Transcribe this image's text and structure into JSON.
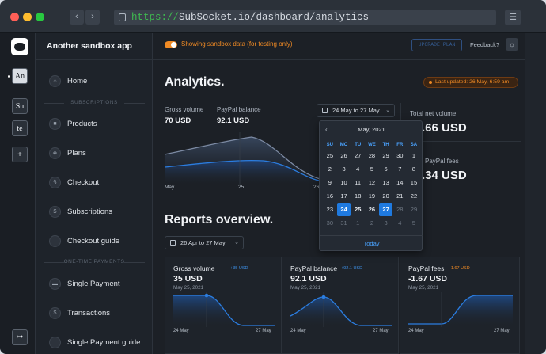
{
  "browser": {
    "url_scheme": "https://",
    "url_rest": "SubSocket.io/dashboard/analytics"
  },
  "rail": {
    "items": [
      {
        "label": "An"
      },
      {
        "label": "Su"
      },
      {
        "label": "te"
      },
      {
        "label": "+"
      }
    ]
  },
  "sidebar": {
    "brand": "Another sandbox app",
    "home": "Home",
    "section_subscriptions": "SUBSCRIPTIONS",
    "products": "Products",
    "plans": "Plans",
    "checkout": "Checkout",
    "subscriptions": "Subscriptions",
    "checkout_guide": "Checkout guide",
    "section_one_time": "ONE-TIME PAYMENTS",
    "single_payment": "Single Payment",
    "transactions": "Transactions",
    "single_payment_guide": "Single Payment guide"
  },
  "topbar": {
    "sandbox_text": "Showing sandbox data (for testing only)",
    "upgrade": "UPGRADE PLAN",
    "feedback": "Feedback?"
  },
  "analytics": {
    "title": "Analytics.",
    "last_updated": "Last updated: 26 May, 6:59 am",
    "gross_label": "Gross volume",
    "gross_value": "70 USD",
    "paypal_label": "PayPal balance",
    "paypal_value": "92.1 USD",
    "date_range": "24 May to 27 May",
    "total_net_label": "Total net volume",
    "total_net_value": ".66 USD",
    "paypal_fees_label": "PayPal fees",
    "paypal_fees_value": ".34 USD",
    "x_ticks": [
      "May",
      "25",
      "26"
    ]
  },
  "calendar": {
    "month": "May, 2021",
    "prev": "‹",
    "weekdays": [
      "SU",
      "MO",
      "TU",
      "WE",
      "TH",
      "FR",
      "SA"
    ],
    "weeks": [
      [
        "25",
        "26",
        "27",
        "28",
        "29",
        "30",
        "1"
      ],
      [
        "2",
        "3",
        "4",
        "5",
        "6",
        "7",
        "8"
      ],
      [
        "9",
        "10",
        "11",
        "12",
        "13",
        "14",
        "15"
      ],
      [
        "16",
        "17",
        "18",
        "19",
        "20",
        "21",
        "22"
      ],
      [
        "23",
        "24",
        "25",
        "26",
        "27",
        "28",
        "29"
      ],
      [
        "30",
        "31",
        "1",
        "2",
        "3",
        "4",
        "5"
      ]
    ],
    "today": "Today"
  },
  "reports": {
    "title": "Reports overview.",
    "date_range": "26 Apr to 27 May",
    "cards": [
      {
        "title": "Gross volume",
        "delta": "+35 USD",
        "value": "35 USD",
        "date": "May 25, 2021",
        "x_start": "24 May",
        "x_end": "27 May"
      },
      {
        "title": "PayPal balance",
        "delta": "+92.1 USD",
        "value": "92.1 USD",
        "date": "May 25, 2021",
        "x_start": "24 May",
        "x_end": "27 May"
      },
      {
        "title": "PayPal fees",
        "delta": "-1.67 USD",
        "value": "-1.67 USD",
        "date": "May 25, 2021",
        "x_start": "24 May",
        "x_end": "27 May"
      }
    ]
  },
  "colors": {
    "accent_blue": "#1f7ae0",
    "accent_orange": "#f08a24",
    "delta_positive": "#3d8fe6",
    "delta_negative": "#f08a24"
  }
}
